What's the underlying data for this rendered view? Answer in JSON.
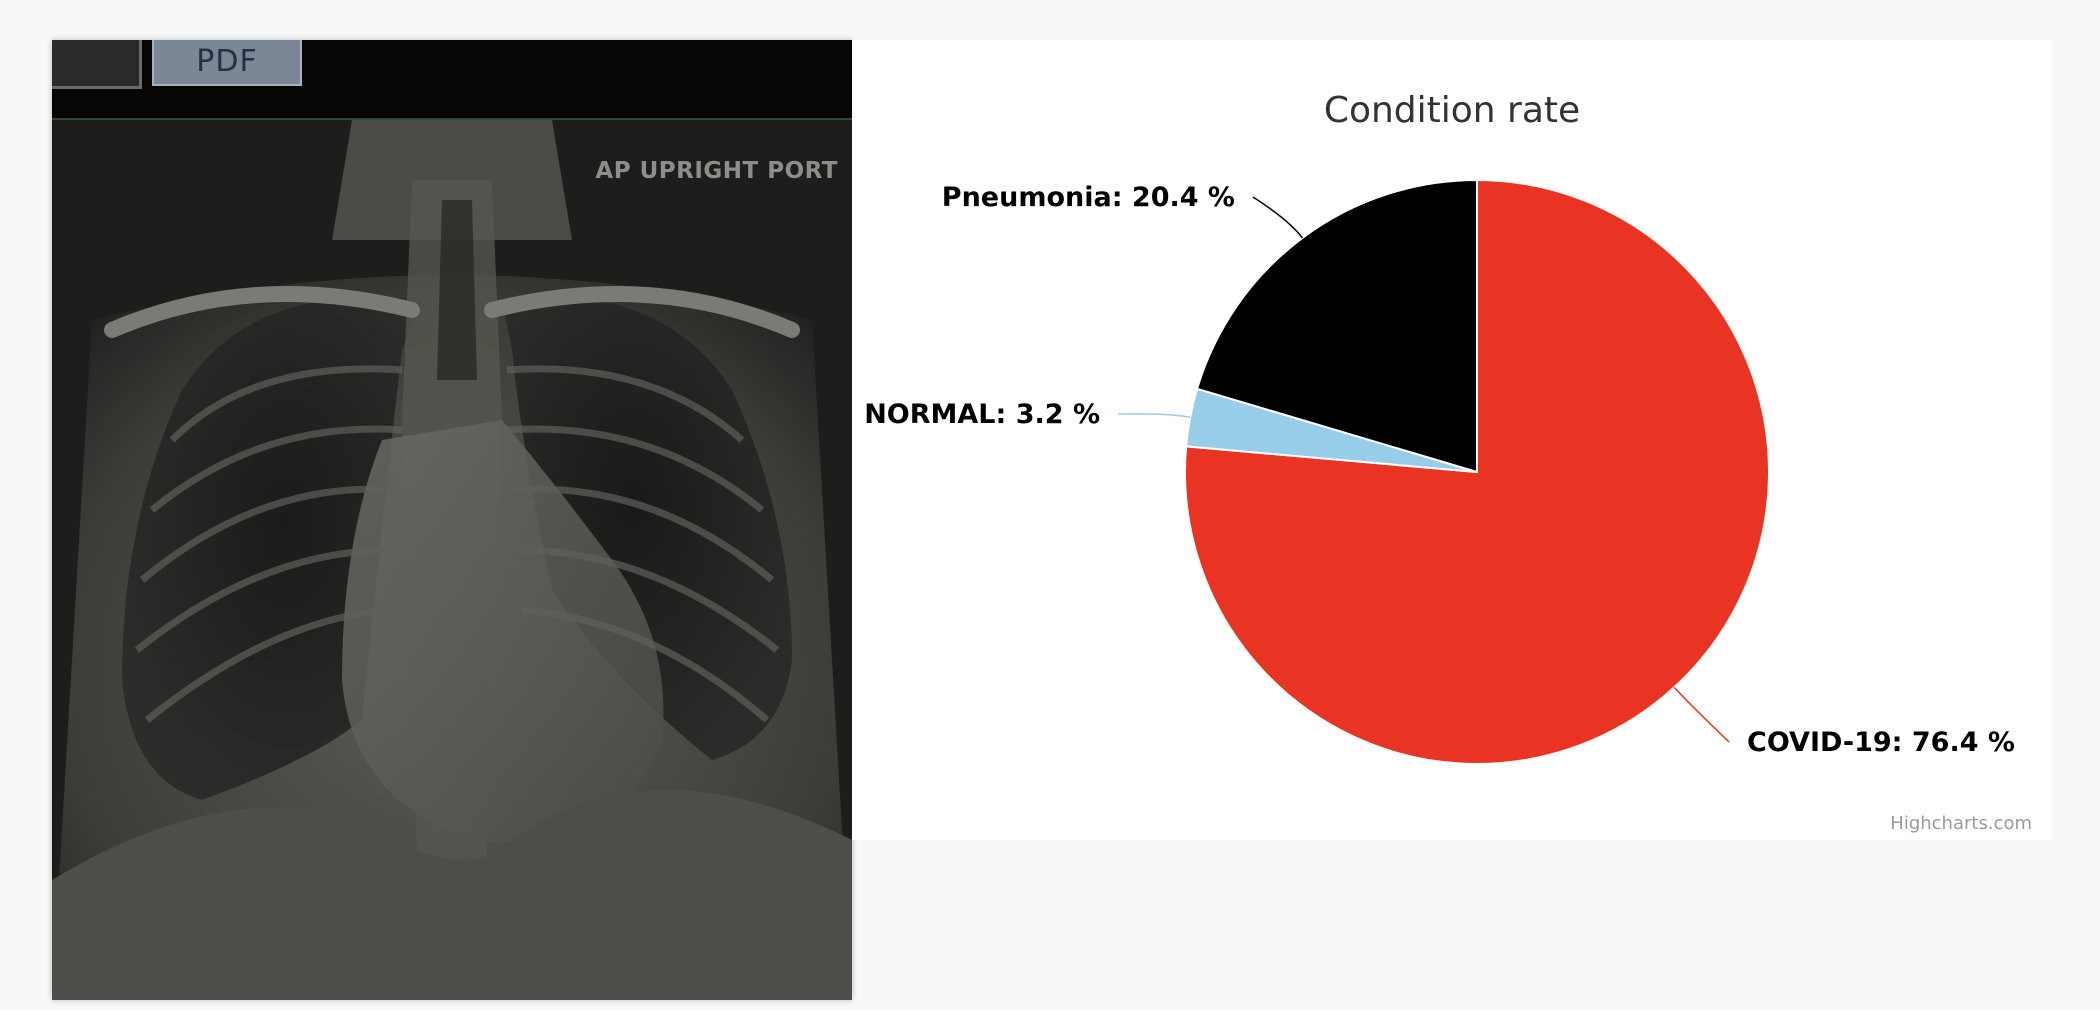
{
  "xray": {
    "pdf_label": "PDF",
    "orientation_label": "AP UPRIGHT PORT"
  },
  "credits": "Highcharts.com",
  "chart_data": {
    "type": "pie",
    "title": "Condition rate",
    "label_suffix": " %",
    "slices": [
      {
        "name": "COVID-19",
        "value": 76.4,
        "color": "#e93323",
        "label": "COVID-19: 76.4 %"
      },
      {
        "name": "NORMAL",
        "value": 3.2,
        "color": "#98cde9",
        "label": "NORMAL: 3.2 %"
      },
      {
        "name": "Pneumonia",
        "value": 20.4,
        "color": "#000000",
        "label": "Pneumonia: 20.4 %"
      }
    ],
    "start_angle_deg": 0,
    "direction": "clockwise"
  }
}
